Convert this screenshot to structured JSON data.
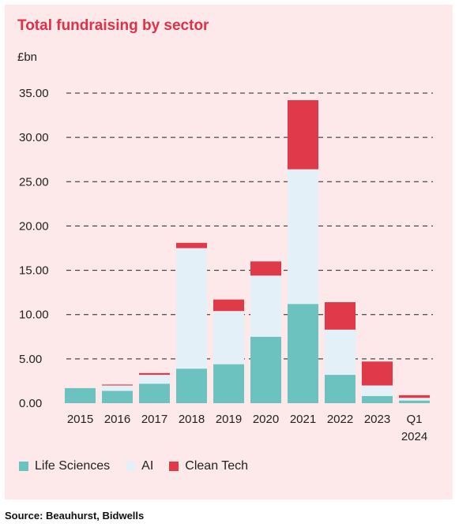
{
  "title": "Total fundraising by sector",
  "source": "Source: Beauhurst, Bidwells",
  "colors": {
    "background": "#fde9e9",
    "title": "#e03046",
    "life_sciences": "#6cc2bf",
    "ai": "#e4f0f8",
    "clean_tech": "#e0394a"
  },
  "chart_data": {
    "type": "bar",
    "stacked": true,
    "title": "Total fundraising by sector",
    "ylabel": "£bn",
    "ylim": [
      0,
      35
    ],
    "yticks": [
      "0.00",
      "5.00",
      "10.00",
      "15.00",
      "20.00",
      "25.00",
      "30.00",
      "35.00"
    ],
    "grid": "dashed horizontal",
    "legend_position": "bottom-left",
    "categories": [
      "2015",
      "2016",
      "2017",
      "2018",
      "2019",
      "2020",
      "2021",
      "2022",
      "2023",
      "Q1 2024"
    ],
    "series": [
      {
        "name": "Life Sciences",
        "color": "#6cc2bf",
        "values": [
          1.7,
          1.4,
          2.2,
          3.9,
          4.4,
          7.5,
          11.2,
          3.2,
          0.8,
          0.3
        ]
      },
      {
        "name": "AI",
        "color": "#e4f0f8",
        "values": [
          0.0,
          0.6,
          1.0,
          13.6,
          6.0,
          6.9,
          15.2,
          5.1,
          1.2,
          0.3
        ]
      },
      {
        "name": "Clean Tech",
        "color": "#e0394a",
        "values": [
          0.0,
          0.1,
          0.2,
          0.6,
          1.3,
          1.6,
          7.8,
          3.1,
          2.7,
          0.3
        ]
      }
    ]
  }
}
